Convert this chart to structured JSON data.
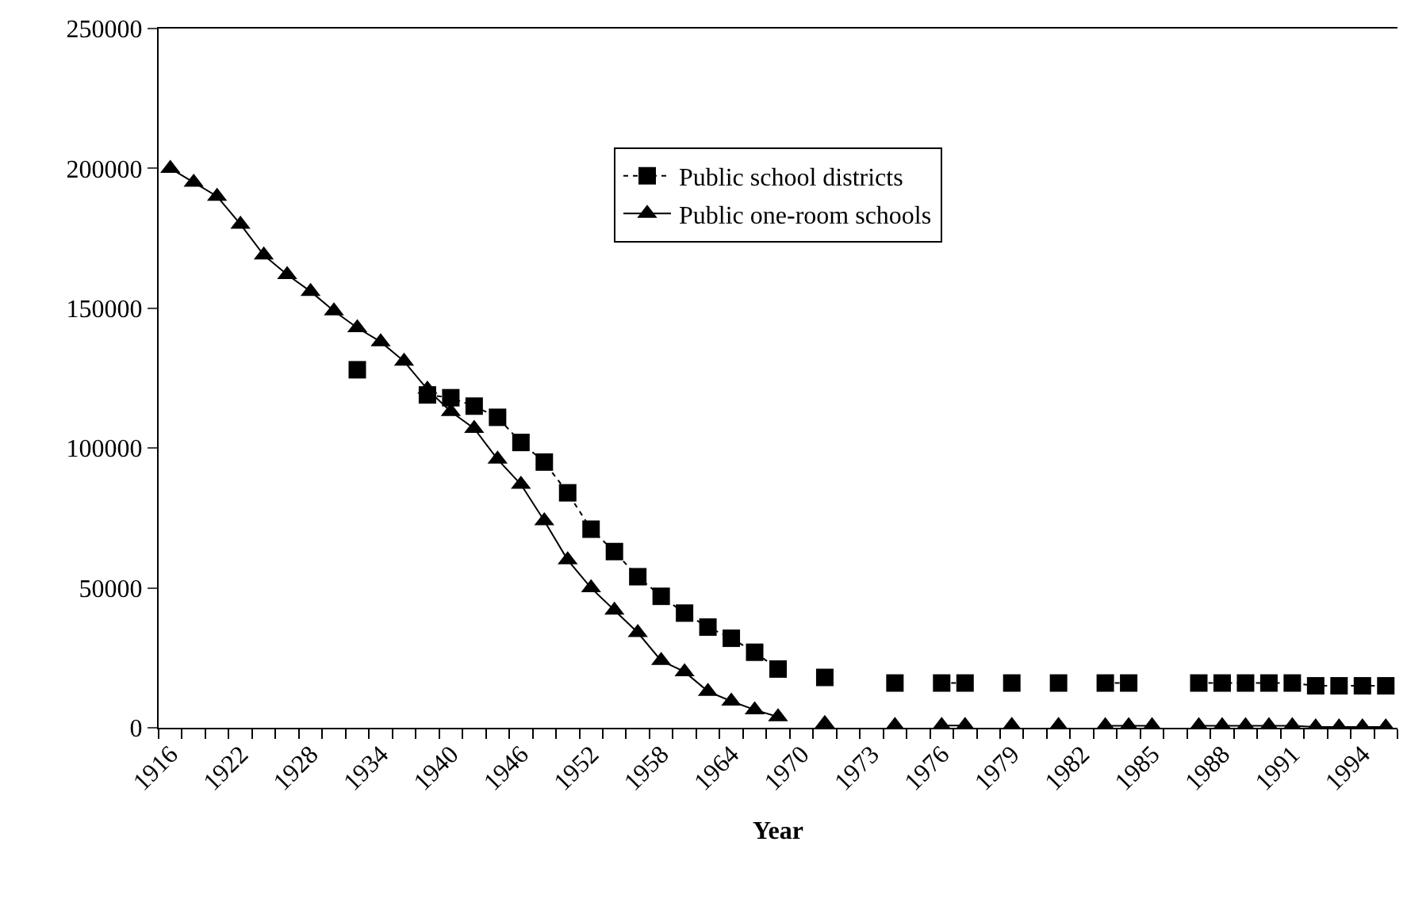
{
  "chart_data": {
    "type": "line",
    "xlabel": "Year",
    "categories": [
      "1916",
      null,
      null,
      "1922",
      null,
      null,
      "1928",
      null,
      null,
      "1934",
      null,
      null,
      "1940",
      null,
      null,
      "1946",
      null,
      null,
      "1952",
      null,
      null,
      "1958",
      null,
      null,
      "1964",
      null,
      null,
      "1970",
      null,
      null,
      "1973",
      null,
      null,
      "1976",
      null,
      null,
      "1979",
      null,
      null,
      "1982",
      null,
      null,
      "1985",
      null,
      null,
      "1988",
      null,
      null,
      "1991",
      null,
      null,
      "1994",
      null
    ],
    "series": [
      {
        "name": "Public school districts",
        "color": "#000000",
        "marker": "square",
        "line_style": "dotted",
        "values": [
          null,
          null,
          null,
          null,
          null,
          null,
          null,
          null,
          128000,
          null,
          null,
          119000,
          118000,
          115000,
          111000,
          102000,
          95000,
          84000,
          71000,
          63000,
          54000,
          47000,
          41000,
          36000,
          32000,
          27000,
          21000,
          null,
          18000,
          null,
          null,
          16000,
          null,
          16000,
          16000,
          null,
          16000,
          null,
          16000,
          null,
          16000,
          16000,
          null,
          null,
          16000,
          16000,
          16000,
          16000,
          16000,
          15000,
          15000,
          15000,
          15000
        ]
      },
      {
        "name": "Public one-room schools",
        "color": "#000000",
        "marker": "triangle",
        "line_style": "solid",
        "values": [
          200000,
          195000,
          190000,
          180000,
          169000,
          162000,
          156000,
          149000,
          143000,
          138000,
          131000,
          121000,
          113000,
          107000,
          96000,
          87000,
          74000,
          60000,
          50000,
          42000,
          34000,
          24000,
          20000,
          13000,
          9500,
          6400,
          3900,
          null,
          1500,
          null,
          null,
          800,
          null,
          800,
          800,
          null,
          800,
          null,
          800,
          null,
          700,
          700,
          700,
          null,
          700,
          700,
          700,
          700,
          700,
          300,
          300,
          300,
          300
        ]
      }
    ],
    "ylim": [
      0,
      250000
    ],
    "yticks": [
      0,
      50000,
      100000,
      150000,
      200000,
      250000
    ],
    "legend": "top"
  }
}
